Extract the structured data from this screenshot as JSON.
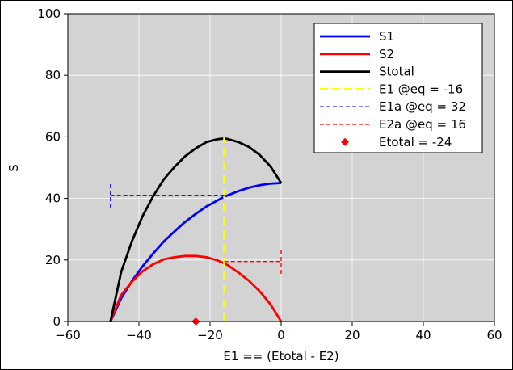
{
  "chart_data": {
    "type": "line",
    "xlabel": "E1 == (Etotal - E2)",
    "ylabel": "S",
    "xlim": [
      -60,
      60
    ],
    "ylim": [
      0,
      100
    ],
    "xticks": [
      -60,
      -40,
      -20,
      0,
      20,
      40,
      60
    ],
    "yticks": [
      0,
      20,
      40,
      60,
      80,
      100
    ],
    "xtick_labels": [
      "−60",
      "−40",
      "−20",
      "0",
      "20",
      "40",
      "60"
    ],
    "ytick_labels": [
      "0",
      "20",
      "40",
      "60",
      "80",
      "100"
    ],
    "grid": true,
    "background": "#d3d3d3",
    "legend_position": "top-right",
    "series": [
      {
        "name": "S1",
        "color": "#0000ff",
        "style": "solid",
        "x": [
          -48,
          -45,
          -42,
          -39,
          -36,
          -33,
          -30,
          -27,
          -24,
          -21,
          -18,
          -16,
          -15,
          -12,
          -9,
          -6,
          -3,
          0
        ],
        "y": [
          0,
          7.5,
          13.1,
          17.9,
          22.1,
          26.0,
          29.3,
          32.4,
          35.0,
          37.4,
          39.3,
          40.6,
          41.0,
          42.4,
          43.5,
          44.3,
          44.8,
          45
        ]
      },
      {
        "name": "S2",
        "color": "#ff0000",
        "style": "solid",
        "x": [
          -48,
          -45,
          -42,
          -39,
          -36,
          -33,
          -30,
          -27,
          -24,
          -21,
          -18,
          -16,
          -15,
          -12,
          -9,
          -6,
          -3,
          0
        ],
        "y": [
          0,
          8.6,
          12.9,
          16.3,
          18.6,
          20.2,
          20.9,
          21.3,
          21.3,
          20.9,
          19.9,
          18.9,
          18.3,
          15.9,
          13.2,
          9.8,
          5.6,
          0
        ]
      },
      {
        "name": "Stotal",
        "color": "#000000",
        "style": "solid",
        "x": [
          -48,
          -45,
          -42,
          -39,
          -36,
          -33,
          -30,
          -27,
          -24,
          -21,
          -18,
          -16,
          -15,
          -12,
          -9,
          -6,
          -3,
          0
        ],
        "y": [
          0,
          16.1,
          26.0,
          34.2,
          40.7,
          46.2,
          50.2,
          53.7,
          56.3,
          58.3,
          59.2,
          59.5,
          59.3,
          58.3,
          56.7,
          54.1,
          50.4,
          45
        ]
      }
    ],
    "reference_lines": [
      {
        "name": "E1 @eq = -16",
        "color": "#ffff00",
        "style": "dashed-thick",
        "points": [
          [
            -16,
            0
          ],
          [
            -16,
            60
          ]
        ]
      },
      {
        "name": "E1a @eq = 32",
        "color": "#0000ff",
        "style": "dashed",
        "points": [
          [
            -16,
            41
          ],
          [
            -48,
            41
          ]
        ],
        "cap_at": -48,
        "cap_range": [
          37,
          45
        ]
      },
      {
        "name": "E2a @eq = 16",
        "color": "#ff0000",
        "style": "dashed",
        "points": [
          [
            -16,
            19.5
          ],
          [
            0,
            19.5
          ]
        ],
        "cap_at": 0,
        "cap_range": [
          15.5,
          23.5
        ]
      }
    ],
    "markers": [
      {
        "name": "Etotal = -24",
        "color": "#ff0000",
        "shape": "diamond",
        "x": -24,
        "y": 0
      }
    ]
  }
}
